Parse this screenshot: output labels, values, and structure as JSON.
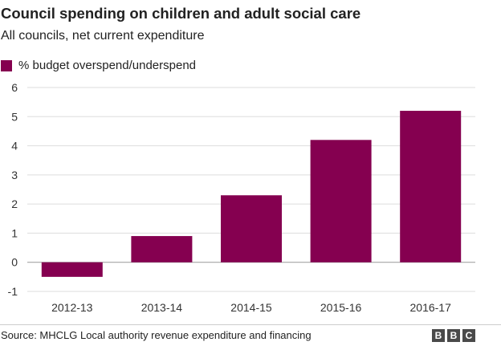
{
  "header": {
    "title": "Council spending on children and adult social care",
    "subtitle": "All councils, net current expenditure"
  },
  "footer": {
    "source": "Source: MHCLG Local authority revenue expenditure and financing",
    "logo": [
      "B",
      "B",
      "C"
    ]
  },
  "colors": {
    "bar": "#850050",
    "grid": "#dddddd",
    "zero_line": "#999999"
  },
  "chart_data": {
    "type": "bar",
    "title": "Council spending on children and adult social care",
    "subtitle": "All councils, net current expenditure",
    "categories": [
      "2012-13",
      "2013-14",
      "2014-15",
      "2015-16",
      "2016-17"
    ],
    "series": [
      {
        "name": "% budget overspend/underspend",
        "values": [
          -0.5,
          0.9,
          2.3,
          4.2,
          5.2
        ]
      }
    ],
    "xlabel": "",
    "ylabel": "",
    "ylim": [
      -1,
      6
    ],
    "yticks": [
      6,
      5,
      4,
      3,
      2,
      1,
      0,
      -1
    ],
    "grid": true,
    "legend": "top-left"
  }
}
